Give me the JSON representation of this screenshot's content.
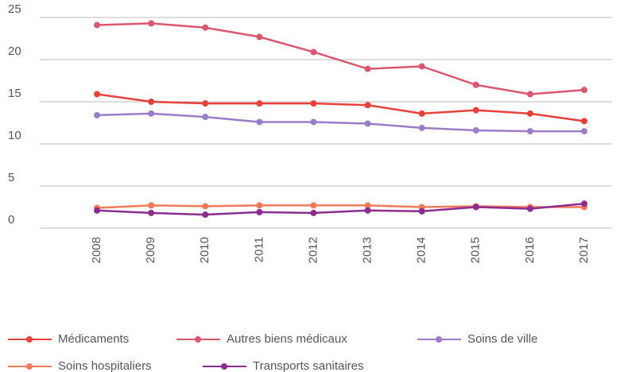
{
  "chart_data": {
    "type": "line",
    "categories": [
      "2008",
      "2009",
      "2010",
      "2011",
      "2012",
      "2013",
      "2014",
      "2015",
      "2016",
      "2017"
    ],
    "series": [
      {
        "name": "Médicaments",
        "color": "#e8413c",
        "values": [
          15.9,
          15.0,
          14.8,
          14.8,
          14.8,
          14.6,
          13.6,
          14.0,
          13.6,
          12.7
        ]
      },
      {
        "name": "Autres biens médicaux",
        "color": "#d9576f",
        "values": [
          24.1,
          24.3,
          23.8,
          22.7,
          20.9,
          18.9,
          19.2,
          17.0,
          15.9,
          16.4
        ]
      },
      {
        "name": "Soins de ville",
        "color": "#9b7cc9",
        "values": [
          13.4,
          13.6,
          13.2,
          12.6,
          12.6,
          12.4,
          11.9,
          11.6,
          11.5,
          11.5
        ]
      },
      {
        "name": "Soins hospitaliers",
        "color": "#f07a5a",
        "values": [
          2.4,
          2.7,
          2.6,
          2.7,
          2.7,
          2.7,
          2.5,
          2.6,
          2.5,
          2.5
        ]
      },
      {
        "name": "Transports sanitaires",
        "color": "#8a2d8f",
        "values": [
          2.1,
          1.8,
          1.6,
          1.9,
          1.8,
          2.1,
          2.0,
          2.5,
          2.3,
          2.9
        ]
      }
    ],
    "ylim": [
      0,
      25
    ],
    "yticks": [
      0,
      5,
      10,
      15,
      20,
      25
    ],
    "grid": true
  }
}
